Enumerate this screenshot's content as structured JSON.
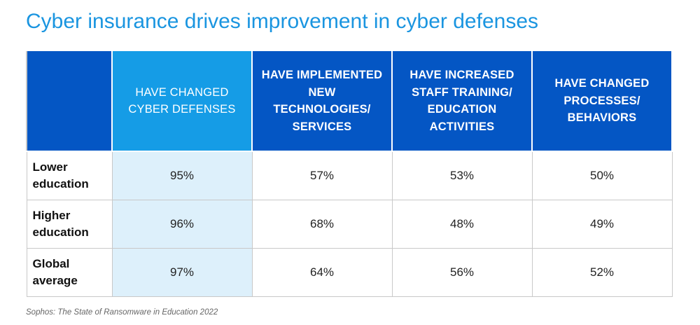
{
  "title": "Cyber insurance drives improvement in cyber defenses",
  "source": "Sophos: The State of Ransomware in Education 2022",
  "colors": {
    "title": "#1a95e0",
    "header": "#0456c4",
    "header_highlight": "#159ce6",
    "column_highlight": "#ddf0fb"
  },
  "chart_data": {
    "type": "table",
    "title": "Cyber insurance drives improvement in cyber defenses",
    "columns": [
      "HAVE CHANGED CYBER DEFENSES",
      "HAVE IMPLEMENTED NEW TECHNOLOGIES/ SERVICES",
      "HAVE INCREASED STAFF TRAINING/ EDUCATION ACTIVITIES",
      "HAVE CHANGED PROCESSES/ BEHAVIORS"
    ],
    "rows": [
      {
        "label": "Lower education",
        "values": [
          "95%",
          "57%",
          "53%",
          "50%"
        ]
      },
      {
        "label": "Higher education",
        "values": [
          "96%",
          "68%",
          "48%",
          "49%"
        ]
      },
      {
        "label": "Global average",
        "values": [
          "97%",
          "64%",
          "56%",
          "52%"
        ]
      }
    ],
    "highlighted_column": 0
  }
}
